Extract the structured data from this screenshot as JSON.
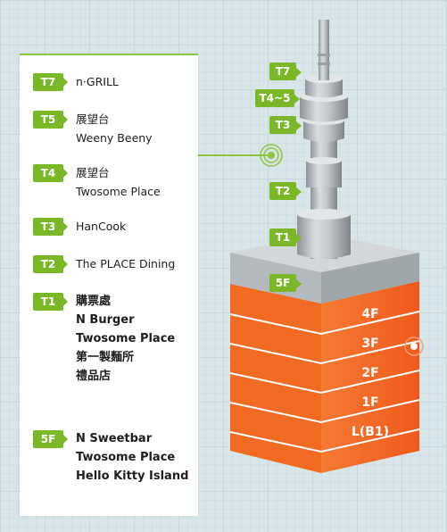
{
  "legend": [
    {
      "badge": "T7",
      "lines": [
        "n·GRILL"
      ]
    },
    {
      "badge": "T5",
      "lines": [
        "展望台",
        "Weeny Beeny"
      ]
    },
    {
      "badge": "T4",
      "lines": [
        "展望台",
        "Twosome Place"
      ]
    },
    {
      "badge": "T3",
      "lines": [
        "HanCook"
      ]
    },
    {
      "badge": "T2",
      "lines": [
        "The PLACE Dining"
      ]
    },
    {
      "badge": "T1",
      "lines": [
        "購票處",
        "N Burger",
        "Twosome Place",
        "第一製麵所",
        "禮品店"
      ]
    },
    {
      "badge": "5F",
      "lines": [
        "N Sweetbar",
        "Twosome Place",
        "Hello Kitty Island"
      ]
    }
  ],
  "tower_tags": {
    "t7": "T7",
    "t45": "T4~5",
    "t3": "T3",
    "t2": "T2",
    "t1": "T1",
    "f5": "5F"
  },
  "floors": [
    "4F",
    "3F",
    "2F",
    "1F",
    "L(B1)"
  ],
  "colors": {
    "accent_green": "#7ab828",
    "floor_orange": "#f26522",
    "platform_gray": "#b8bec2",
    "tower_gray": "#a9aeb2"
  }
}
